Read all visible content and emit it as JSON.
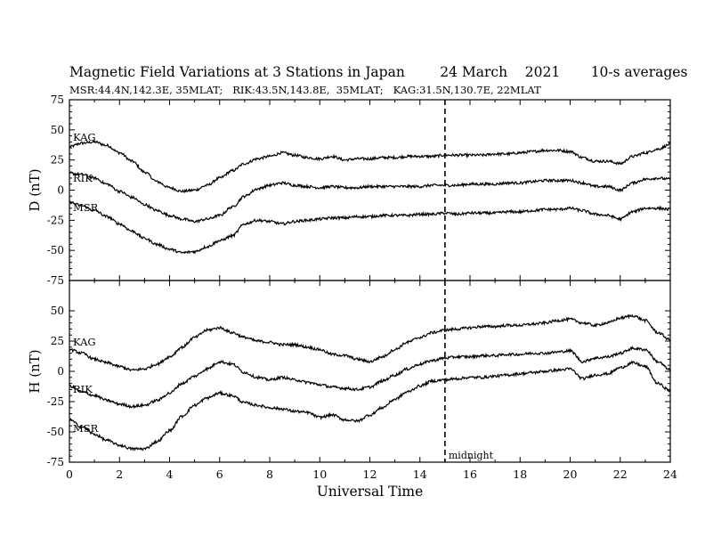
{
  "title": "Magnetic Field Variations at 3 Stations in Japan        24 March    2021       10-s averages",
  "subtitle": "MSR:44.4N,142.3E, 35MLAT;   RIK:43.5N,143.8E,  35MLAT;   KAG:31.5N,130.7E, 22MLAT",
  "chart_data": [
    {
      "type": "line",
      "panel": "D",
      "ylabel": "D (nT)",
      "xlabel": "",
      "xlim": [
        0,
        24
      ],
      "ylim": [
        -75,
        75
      ],
      "yticks": [
        -75,
        -50,
        -25,
        0,
        25,
        50,
        75
      ],
      "ytick_labels": [
        "-75",
        "-50",
        "-25",
        "0",
        "25",
        "50",
        "75"
      ],
      "x": [
        0,
        0.5,
        1,
        1.5,
        2,
        2.5,
        3,
        3.5,
        4,
        4.5,
        5,
        5.5,
        6,
        6.5,
        7,
        7.5,
        8,
        8.5,
        9,
        9.5,
        10,
        10.5,
        11,
        11.5,
        12,
        12.5,
        13,
        13.5,
        14,
        14.5,
        15,
        15.5,
        16,
        16.5,
        17,
        17.5,
        18,
        18.5,
        19,
        19.5,
        20,
        20.5,
        21,
        21.5,
        22,
        22.5,
        23,
        23.5,
        24
      ],
      "series": [
        {
          "name": "KAG",
          "values": [
            36,
            39,
            40,
            37,
            31,
            24,
            15,
            7,
            2,
            -1,
            0,
            4,
            10,
            16,
            22,
            26,
            28,
            31,
            29,
            27,
            26,
            28,
            25,
            26,
            26,
            27,
            27,
            28,
            28,
            28,
            29,
            29,
            29,
            29,
            30,
            30,
            31,
            32,
            33,
            33,
            32,
            27,
            24,
            24,
            22,
            28,
            31,
            34,
            38
          ]
        },
        {
          "name": "RIK",
          "values": [
            14,
            13,
            10,
            5,
            -1,
            -6,
            -12,
            -17,
            -21,
            -24,
            -26,
            -24,
            -21,
            -14,
            -5,
            1,
            4,
            6,
            4,
            3,
            2,
            3,
            2,
            2,
            3,
            3,
            3,
            3,
            3,
            4,
            4,
            4,
            5,
            5,
            5,
            6,
            6,
            7,
            8,
            8,
            8,
            6,
            3,
            3,
            0,
            6,
            9,
            10,
            9
          ]
        },
        {
          "name": "MSR",
          "values": [
            -10,
            -13,
            -17,
            -22,
            -28,
            -34,
            -40,
            -45,
            -49,
            -52,
            -51,
            -47,
            -42,
            -38,
            -28,
            -25,
            -26,
            -28,
            -26,
            -25,
            -24,
            -23,
            -23,
            -22,
            -22,
            -21,
            -21,
            -21,
            -20,
            -20,
            -19,
            -20,
            -19,
            -19,
            -19,
            -18,
            -18,
            -17,
            -16,
            -16,
            -15,
            -17,
            -20,
            -21,
            -24,
            -18,
            -15,
            -15,
            -16
          ]
        }
      ],
      "annotations": [
        "KAG",
        "RIK",
        "MSR"
      ],
      "vline_x": 15,
      "grid": false
    },
    {
      "type": "line",
      "panel": "H",
      "ylabel": "H (nT)",
      "xlabel": "Universal Time",
      "xlim": [
        0,
        24
      ],
      "ylim": [
        -75,
        75
      ],
      "xticks": [
        0,
        2,
        4,
        6,
        8,
        10,
        12,
        14,
        16,
        18,
        20,
        22,
        24
      ],
      "xtick_labels": [
        "0",
        "2",
        "4",
        "6",
        "8",
        "10",
        "12",
        "14",
        "16",
        "18",
        "20",
        "22",
        "24"
      ],
      "yticks": [
        -75,
        -50,
        -25,
        0,
        25,
        50
      ],
      "ytick_labels": [
        "-75",
        "-50",
        "-25",
        "0",
        "25",
        "50"
      ],
      "x": [
        0,
        0.5,
        1,
        1.5,
        2,
        2.5,
        3,
        3.5,
        4,
        4.5,
        5,
        5.5,
        6,
        6.5,
        7,
        7.5,
        8,
        8.5,
        9,
        9.5,
        10,
        10.5,
        11,
        11.5,
        12,
        12.5,
        13,
        13.5,
        14,
        14.5,
        15,
        15.5,
        16,
        16.5,
        17,
        17.5,
        18,
        18.5,
        19,
        19.5,
        20,
        20.5,
        21,
        21.5,
        22,
        22.5,
        23,
        23.5,
        24
      ],
      "series": [
        {
          "name": "KAG",
          "values": [
            18,
            15,
            10,
            7,
            4,
            1,
            2,
            6,
            12,
            20,
            28,
            34,
            36,
            32,
            28,
            25,
            24,
            22,
            22,
            20,
            18,
            14,
            13,
            10,
            8,
            12,
            18,
            24,
            28,
            32,
            34,
            35,
            36,
            37,
            37,
            38,
            38,
            39,
            40,
            42,
            43,
            40,
            38,
            40,
            44,
            46,
            42,
            32,
            26
          ]
        },
        {
          "name": "RIK",
          "values": [
            -12,
            -17,
            -20,
            -24,
            -27,
            -29,
            -28,
            -24,
            -18,
            -10,
            -4,
            2,
            8,
            6,
            -1,
            -5,
            -7,
            -5,
            -7,
            -9,
            -11,
            -13,
            -14,
            -15,
            -13,
            -8,
            -3,
            2,
            6,
            9,
            11,
            12,
            12,
            13,
            13,
            14,
            14,
            15,
            15,
            16,
            17,
            8,
            11,
            12,
            15,
            19,
            18,
            8,
            1
          ]
        },
        {
          "name": "MSR",
          "values": [
            -40,
            -46,
            -52,
            -57,
            -61,
            -64,
            -64,
            -58,
            -49,
            -37,
            -28,
            -22,
            -18,
            -20,
            -26,
            -28,
            -30,
            -31,
            -33,
            -34,
            -38,
            -36,
            -40,
            -41,
            -36,
            -30,
            -23,
            -17,
            -12,
            -8,
            -7,
            -6,
            -5,
            -5,
            -4,
            -3,
            -2,
            -1,
            0,
            1,
            2,
            -6,
            -3,
            -2,
            3,
            7,
            4,
            -10,
            -16
          ]
        }
      ],
      "annotations": [
        "KAG",
        "RIK",
        "MSR",
        "midnight"
      ],
      "vline_x": 15,
      "grid": false
    }
  ]
}
